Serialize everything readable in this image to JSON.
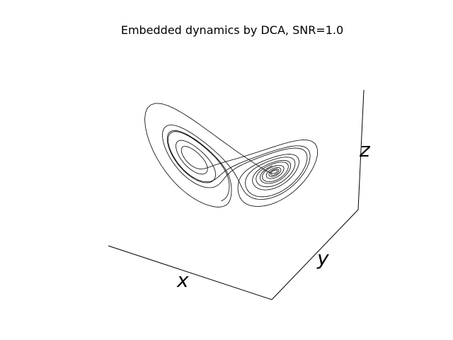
{
  "chart_data": {
    "type": "line",
    "projection": "3d",
    "title": "Embedded dynamics by DCA, SNR=1.0",
    "xlabel": "x",
    "ylabel": "y",
    "zlabel": "z",
    "grid": false,
    "ticks": "none",
    "line_color": "#000000",
    "series": [
      {
        "points": []
      }
    ]
  }
}
